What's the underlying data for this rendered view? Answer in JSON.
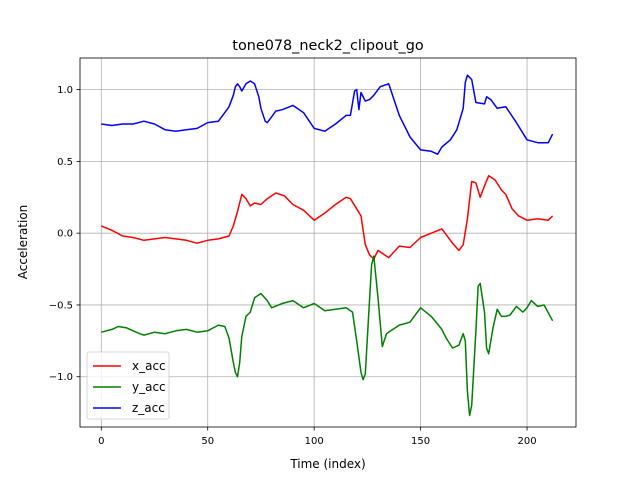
{
  "chart_data": {
    "type": "line",
    "title": "tone078_neck2_clipout_go",
    "xlabel": "Time (index)",
    "ylabel": "Acceleration",
    "xlim": [
      -10,
      223
    ],
    "ylim": [
      -1.35,
      1.22
    ],
    "xticks": [
      0,
      50,
      100,
      150,
      200
    ],
    "xtick_labels": [
      "0",
      "50",
      "100",
      "150",
      "200"
    ],
    "yticks": [
      -1.0,
      -0.5,
      0.0,
      0.5,
      1.0
    ],
    "ytick_labels": [
      "−1.0",
      "−0.5",
      "0.0",
      "0.5",
      "1.0"
    ],
    "grid": true,
    "legend_position": "lower-left",
    "series": [
      {
        "name": "x_acc",
        "color": "#ff0000",
        "x": [
          0,
          5,
          10,
          15,
          20,
          25,
          30,
          35,
          40,
          45,
          50,
          55,
          60,
          62,
          64,
          66,
          68,
          70,
          72,
          75,
          78,
          82,
          86,
          90,
          95,
          100,
          105,
          110,
          115,
          117,
          120,
          122,
          124,
          126,
          128,
          130,
          135,
          140,
          145,
          150,
          155,
          160,
          162,
          165,
          168,
          170,
          172,
          174,
          176,
          178,
          180,
          182,
          185,
          188,
          190,
          193,
          196,
          200,
          205,
          210,
          212
        ],
        "y": [
          0.05,
          0.02,
          -0.02,
          -0.03,
          -0.05,
          -0.04,
          -0.03,
          -0.04,
          -0.05,
          -0.07,
          -0.05,
          -0.04,
          -0.02,
          0.05,
          0.15,
          0.27,
          0.24,
          0.19,
          0.21,
          0.2,
          0.24,
          0.28,
          0.26,
          0.2,
          0.16,
          0.09,
          0.14,
          0.2,
          0.25,
          0.24,
          0.17,
          0.12,
          -0.08,
          -0.15,
          -0.18,
          -0.12,
          -0.17,
          -0.09,
          -0.1,
          -0.03,
          0.0,
          0.03,
          -0.01,
          -0.07,
          -0.12,
          -0.08,
          0.1,
          0.36,
          0.35,
          0.25,
          0.33,
          0.4,
          0.37,
          0.3,
          0.27,
          0.17,
          0.12,
          0.09,
          0.1,
          0.09,
          0.12
        ]
      },
      {
        "name": "y_acc",
        "color": "#008000",
        "x": [
          0,
          5,
          8,
          12,
          15,
          18,
          20,
          25,
          30,
          35,
          40,
          45,
          50,
          55,
          58,
          60,
          62,
          63,
          64,
          65,
          66,
          68,
          70,
          72,
          75,
          78,
          80,
          85,
          90,
          95,
          100,
          105,
          110,
          115,
          118,
          120,
          122,
          123,
          124,
          126,
          127,
          128,
          130,
          132,
          134,
          136,
          140,
          145,
          150,
          155,
          160,
          162,
          165,
          168,
          170,
          171,
          172,
          173,
          174,
          176,
          177,
          178,
          180,
          181,
          182,
          184,
          186,
          188,
          190,
          192,
          195,
          198,
          200,
          202,
          205,
          208,
          212
        ],
        "y": [
          -0.69,
          -0.67,
          -0.65,
          -0.66,
          -0.68,
          -0.7,
          -0.71,
          -0.69,
          -0.7,
          -0.68,
          -0.67,
          -0.69,
          -0.68,
          -0.64,
          -0.65,
          -0.73,
          -0.9,
          -0.97,
          -1.0,
          -0.9,
          -0.72,
          -0.58,
          -0.55,
          -0.45,
          -0.42,
          -0.47,
          -0.52,
          -0.49,
          -0.47,
          -0.52,
          -0.49,
          -0.54,
          -0.53,
          -0.52,
          -0.55,
          -0.75,
          -0.97,
          -1.02,
          -0.98,
          -0.47,
          -0.22,
          -0.16,
          -0.45,
          -0.79,
          -0.7,
          -0.68,
          -0.64,
          -0.62,
          -0.52,
          -0.58,
          -0.67,
          -0.73,
          -0.8,
          -0.78,
          -0.7,
          -0.75,
          -1.1,
          -1.27,
          -1.2,
          -0.68,
          -0.37,
          -0.35,
          -0.55,
          -0.8,
          -0.84,
          -0.66,
          -0.53,
          -0.58,
          -0.58,
          -0.57,
          -0.51,
          -0.55,
          -0.52,
          -0.47,
          -0.51,
          -0.5,
          -0.61
        ]
      },
      {
        "name": "z_acc",
        "color": "#0000ff",
        "x": [
          0,
          5,
          10,
          15,
          20,
          25,
          30,
          35,
          40,
          45,
          50,
          55,
          58,
          60,
          62,
          63,
          64,
          65,
          66,
          68,
          70,
          72,
          74,
          75,
          77,
          78,
          80,
          82,
          85,
          90,
          95,
          100,
          105,
          110,
          115,
          117,
          119,
          120,
          121,
          122,
          124,
          126,
          128,
          131,
          135,
          140,
          145,
          150,
          155,
          158,
          160,
          164,
          167,
          170,
          171,
          172,
          174,
          176,
          180,
          181,
          183,
          186,
          190,
          195,
          200,
          205,
          210,
          212
        ],
        "y": [
          0.76,
          0.75,
          0.76,
          0.76,
          0.78,
          0.76,
          0.72,
          0.71,
          0.72,
          0.73,
          0.77,
          0.78,
          0.84,
          0.88,
          0.96,
          1.02,
          1.04,
          1.02,
          0.99,
          1.04,
          1.06,
          1.04,
          0.95,
          0.87,
          0.78,
          0.77,
          0.81,
          0.85,
          0.86,
          0.89,
          0.84,
          0.73,
          0.71,
          0.76,
          0.82,
          0.82,
          0.99,
          1.0,
          0.86,
          0.98,
          0.92,
          0.93,
          0.96,
          1.02,
          1.04,
          0.82,
          0.67,
          0.58,
          0.57,
          0.55,
          0.6,
          0.65,
          0.72,
          0.87,
          1.05,
          1.1,
          1.07,
          0.91,
          0.9,
          0.95,
          0.93,
          0.87,
          0.88,
          0.77,
          0.65,
          0.63,
          0.63,
          0.69
        ]
      }
    ]
  }
}
